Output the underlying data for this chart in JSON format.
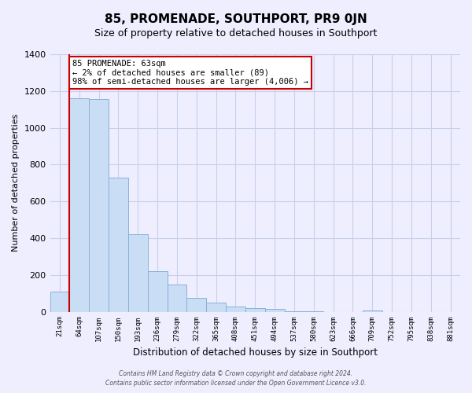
{
  "title": "85, PROMENADE, SOUTHPORT, PR9 0JN",
  "subtitle": "Size of property relative to detached houses in Southport",
  "xlabel": "Distribution of detached houses by size in Southport",
  "ylabel": "Number of detached properties",
  "bin_labels": [
    "21sqm",
    "64sqm",
    "107sqm",
    "150sqm",
    "193sqm",
    "236sqm",
    "279sqm",
    "322sqm",
    "365sqm",
    "408sqm",
    "451sqm",
    "494sqm",
    "537sqm",
    "580sqm",
    "623sqm",
    "666sqm",
    "709sqm",
    "752sqm",
    "795sqm",
    "838sqm",
    "881sqm"
  ],
  "bar_values": [
    110,
    1160,
    1155,
    730,
    420,
    220,
    148,
    75,
    50,
    30,
    18,
    15,
    2,
    2,
    0,
    0,
    5,
    0,
    0,
    0,
    0
  ],
  "bar_color": "#c9ddf5",
  "bar_edge_color": "#8ab0d8",
  "marker_line_color": "#cc0000",
  "annotation_line1": "85 PROMENADE: 63sqm",
  "annotation_line2": "← 2% of detached houses are smaller (89)",
  "annotation_line3": "98% of semi-detached houses are larger (4,006) →",
  "annotation_box_facecolor": "#ffffff",
  "annotation_box_edgecolor": "#cc0000",
  "ylim": [
    0,
    1400
  ],
  "yticks": [
    0,
    200,
    400,
    600,
    800,
    1000,
    1200,
    1400
  ],
  "footer_line1": "Contains HM Land Registry data © Crown copyright and database right 2024.",
  "footer_line2": "Contains public sector information licensed under the Open Government Licence v3.0.",
  "bg_color": "#eeeeff",
  "grid_color": "#c8d0e8",
  "title_fontsize": 11,
  "subtitle_fontsize": 9
}
